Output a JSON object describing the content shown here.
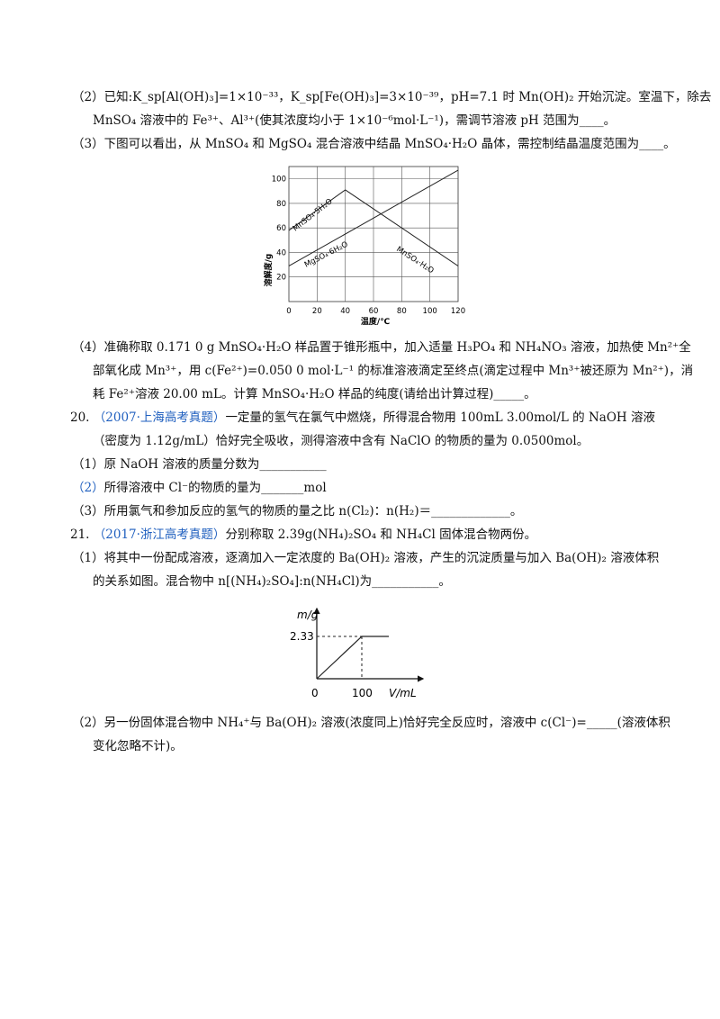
{
  "q2": {
    "line1": "（2）已知:K_sp[Al(OH)₃]=1×10⁻³³，K_sp[Fe(OH)₃]=3×10⁻³⁹，pH=7.1 时 Mn(OH)₂ 开始沉淀。室温下，除去",
    "line2": "MnSO₄ 溶液中的 Fe³⁺、Al³⁺(使其浓度均小于 1×10⁻⁶mol·L⁻¹)，需调节溶液 pH 范围为____。"
  },
  "q3": {
    "line1": "（3）下图可以看出，从 MnSO₄ 和 MgSO₄ 混合溶液中结晶 MnSO₄·H₂O 晶体，需控制结晶温度范围为____。"
  },
  "chart1": {
    "ylabel": "溶解度/g",
    "xlabel": "温度/℃",
    "yticks": [
      "20",
      "40",
      "60",
      "80",
      "100"
    ],
    "xticks": [
      "0",
      "20",
      "40",
      "60",
      "80",
      "100",
      "120"
    ],
    "label_mn5": "MnSO₄·5H₂O",
    "label_mg6": "MgSO₄·6H₂O",
    "label_mn1": "MnSO₄·H₂O"
  },
  "chart_data": [
    {
      "type": "line",
      "xlabel": "温度/℃",
      "ylabel": "溶解度/g",
      "xlim": [
        0,
        120
      ],
      "ylim": [
        0,
        110
      ],
      "grid": true,
      "series": [
        {
          "name": "MnSO₄·5H₂O",
          "x": [
            0,
            40
          ],
          "y": [
            58,
            91
          ]
        },
        {
          "name": "MnSO₄·H₂O",
          "x": [
            40,
            120
          ],
          "y": [
            91,
            29
          ]
        },
        {
          "name": "MgSO₄·6H₂O",
          "x": [
            0,
            120
          ],
          "y": [
            29,
            107
          ]
        }
      ]
    },
    {
      "type": "line",
      "xlabel": "V/mL",
      "ylabel": "m/g",
      "xticks": [
        "0",
        "100"
      ],
      "yticks": [
        "2.33"
      ],
      "series": [
        {
          "x": [
            0,
            100,
            160
          ],
          "y": [
            0,
            2.33,
            2.33
          ]
        }
      ]
    }
  ],
  "q4": {
    "line1": "（4）准确称取 0.171 0 g MnSO₄·H₂O 样品置于锥形瓶中，加入适量 H₃PO₄ 和 NH₄NO₃ 溶液，加热使 Mn²⁺全",
    "line2": "部氧化成 Mn³⁺，用 c(Fe²⁺)=0.050 0 mol·L⁻¹ 的标准溶液滴定至终点(滴定过程中 Mn³⁺被还原为 Mn²⁺)，消",
    "line3": "耗 Fe²⁺溶液 20.00 mL。计算 MnSO₄·H₂O 样品的纯度(请给出计算过程)_____。"
  },
  "q20": {
    "num": "20.",
    "source": "（2007·上海高考真题）",
    "line1_rest": "一定量的氢气在氯气中燃烧，所得混合物用 100mL 3.00mol/L 的 NaOH 溶液",
    "line2": "（密度为 1.12g/mL）恰好完全吸收，测得溶液中含有 NaClO 的物质的量为 0.0500mol。",
    "sub1": "（1）原 NaOH 溶液的质量分数为___________",
    "sub2_num": "（2）",
    "sub2_rest": "所得溶液中 Cl⁻的物质的量为_______mol",
    "sub3": "（3）所用氯气和参加反应的氢气的物质的量之比 n(Cl₂)：n(H₂)＝_____________。"
  },
  "q21": {
    "num": "21.",
    "source": "（2017·浙江高考真题）",
    "line1_rest": "分别称取 2.39g(NH₄)₂SO₄ 和 NH₄Cl 固体混合物两份。",
    "sub1_line1": "（1）将其中一份配成溶液，逐滴加入一定浓度的 Ba(OH)₂ 溶液，产生的沉淀质量与加入 Ba(OH)₂ 溶液体积",
    "sub1_line2": "的关系如图。混合物中 n[(NH₄)₂SO₄]:n(NH₄Cl)为___________。",
    "sub2_line1": "（2）另一份固体混合物中 NH₄⁺与 Ba(OH)₂ 溶液(浓度同上)恰好完全反应时，溶液中 c(Cl⁻)=_____(溶液体积",
    "sub2_line2": "变化忽略不计)。"
  },
  "chart2": {
    "ylabel": "m/g",
    "xlabel": "V/mL",
    "ytick": "2.33",
    "xtick0": "0",
    "xtick100": "100"
  }
}
